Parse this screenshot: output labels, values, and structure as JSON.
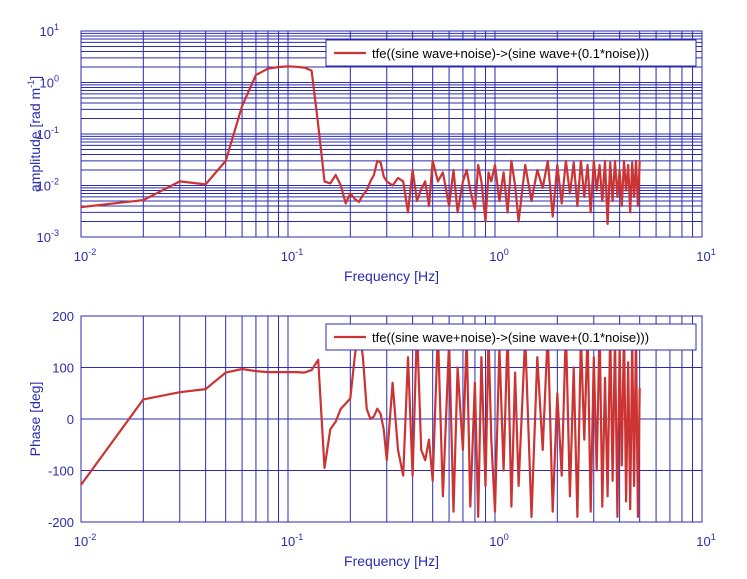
{
  "colors": {
    "axes": "#2b2bb0",
    "grid": "#2b2bb0",
    "series": "#cc3333",
    "background": "#ffffff"
  },
  "chart_data": [
    {
      "type": "line",
      "xscale": "log",
      "yscale": "log",
      "xlim": [
        0.01,
        10
      ],
      "ylim": [
        0.001,
        10
      ],
      "xlabel": "Frequency  [Hz]",
      "ylabel": "amplitude  [rad m",
      "ylabel_exp": "-1",
      "ylabel_close": "]",
      "grid": true,
      "legend_position": "top-right",
      "xticks": [
        {
          "base": "10",
          "exp": "-2"
        },
        {
          "base": "10",
          "exp": "-1"
        },
        {
          "base": "10",
          "exp": "0"
        },
        {
          "base": "10",
          "exp": "1"
        }
      ],
      "yticks": [
        {
          "base": "10",
          "exp": "-3"
        },
        {
          "base": "10",
          "exp": "-2"
        },
        {
          "base": "10",
          "exp": "-1"
        },
        {
          "base": "10",
          "exp": "0"
        },
        {
          "base": "10",
          "exp": "1"
        }
      ],
      "series": [
        {
          "name": "tfe((sine wave+noise)->(sine wave+(0.1*noise)))",
          "x": [
            0.01,
            0.02,
            0.03,
            0.04,
            0.05,
            0.06,
            0.07,
            0.08,
            0.09,
            0.1,
            0.11,
            0.12,
            0.13,
            0.14,
            0.15,
            0.16,
            0.17,
            0.18,
            0.19,
            0.2,
            0.21,
            0.22,
            0.23,
            0.24,
            0.25,
            0.26,
            0.27,
            0.28,
            0.29,
            0.3,
            0.32,
            0.34,
            0.36,
            0.38,
            0.4,
            0.42,
            0.44,
            0.46,
            0.48,
            0.5,
            0.53,
            0.56,
            0.6,
            0.63,
            0.66,
            0.7,
            0.73,
            0.76,
            0.8,
            0.83,
            0.86,
            0.9,
            0.93,
            0.96,
            1.0,
            1.05,
            1.1,
            1.15,
            1.2,
            1.25,
            1.3,
            1.4,
            1.5,
            1.6,
            1.7,
            1.8,
            1.9,
            2.0,
            2.1,
            2.2,
            2.3,
            2.4,
            2.5,
            2.6,
            2.7,
            2.8,
            2.9,
            3.0,
            3.1,
            3.2,
            3.3,
            3.4,
            3.5,
            3.6,
            3.7,
            3.8,
            3.9,
            4.0,
            4.1,
            4.2,
            4.3,
            4.4,
            4.5,
            4.6,
            4.7,
            4.8,
            4.9,
            5.0
          ],
          "y": [
            0.0038,
            0.0052,
            0.012,
            0.0105,
            0.03,
            0.35,
            1.4,
            1.85,
            2.0,
            2.05,
            2.02,
            1.95,
            1.7,
            0.15,
            0.012,
            0.011,
            0.016,
            0.01,
            0.0045,
            0.007,
            0.0055,
            0.0048,
            0.0065,
            0.008,
            0.012,
            0.016,
            0.03,
            0.028,
            0.015,
            0.012,
            0.01,
            0.014,
            0.012,
            0.003,
            0.02,
            0.005,
            0.0085,
            0.012,
            0.004,
            0.03,
            0.012,
            0.018,
            0.004,
            0.02,
            0.003,
            0.012,
            0.02,
            0.008,
            0.0035,
            0.025,
            0.012,
            0.002,
            0.018,
            0.012,
            0.025,
            0.005,
            0.018,
            0.003,
            0.03,
            0.01,
            0.002,
            0.025,
            0.005,
            0.02,
            0.009,
            0.03,
            0.0025,
            0.025,
            0.0045,
            0.03,
            0.007,
            0.028,
            0.004,
            0.03,
            0.006,
            0.025,
            0.003,
            0.03,
            0.008,
            0.025,
            0.005,
            0.03,
            0.0018,
            0.028,
            0.005,
            0.03,
            0.006,
            0.02,
            0.004,
            0.03,
            0.008,
            0.025,
            0.003,
            0.028,
            0.006,
            0.03,
            0.004,
            0.03
          ]
        }
      ]
    },
    {
      "type": "line",
      "xscale": "log",
      "yscale": "linear",
      "xlim": [
        0.01,
        10
      ],
      "ylim": [
        -200,
        200
      ],
      "xlabel": "Frequency  [Hz]",
      "ylabel": "Phase [deg]",
      "grid": true,
      "legend_position": "top-right",
      "xticks": [
        {
          "base": "10",
          "exp": "-2"
        },
        {
          "base": "10",
          "exp": "-1"
        },
        {
          "base": "10",
          "exp": "0"
        },
        {
          "base": "10",
          "exp": "1"
        }
      ],
      "yticks": [
        {
          "value": 200,
          "label": "200"
        },
        {
          "value": 100,
          "label": "100"
        },
        {
          "value": 0,
          "label": "0"
        },
        {
          "value": -100,
          "label": "-100"
        },
        {
          "value": -200,
          "label": "-200"
        }
      ],
      "series": [
        {
          "name": "tfe((sine wave+noise)->(sine wave+(0.1*noise)))",
          "x": [
            0.01,
            0.02,
            0.03,
            0.04,
            0.05,
            0.06,
            0.07,
            0.08,
            0.09,
            0.1,
            0.11,
            0.12,
            0.13,
            0.14,
            0.15,
            0.16,
            0.17,
            0.18,
            0.19,
            0.2,
            0.21,
            0.22,
            0.23,
            0.24,
            0.25,
            0.26,
            0.27,
            0.28,
            0.29,
            0.3,
            0.32,
            0.34,
            0.36,
            0.38,
            0.4,
            0.42,
            0.44,
            0.46,
            0.48,
            0.5,
            0.53,
            0.56,
            0.6,
            0.63,
            0.66,
            0.7,
            0.73,
            0.76,
            0.8,
            0.83,
            0.86,
            0.9,
            0.93,
            0.96,
            1.0,
            1.05,
            1.1,
            1.15,
            1.2,
            1.25,
            1.3,
            1.4,
            1.5,
            1.6,
            1.7,
            1.8,
            1.9,
            2.0,
            2.1,
            2.2,
            2.3,
            2.4,
            2.5,
            2.6,
            2.7,
            2.8,
            2.9,
            3.0,
            3.1,
            3.2,
            3.3,
            3.4,
            3.5,
            3.6,
            3.7,
            3.8,
            3.9,
            4.0,
            4.1,
            4.2,
            4.3,
            4.4,
            4.5,
            4.6,
            4.7,
            4.8,
            4.9,
            5.0
          ],
          "y": [
            -128,
            38,
            52,
            58,
            90,
            97,
            93,
            91,
            91,
            91,
            91,
            90,
            95,
            115,
            -95,
            -20,
            -5,
            20,
            30,
            40,
            120,
            180,
            120,
            20,
            0,
            5,
            20,
            10,
            -20,
            -80,
            70,
            -60,
            -110,
            120,
            -110,
            180,
            -60,
            -80,
            -40,
            -120,
            170,
            -150,
            150,
            -180,
            100,
            -60,
            160,
            -170,
            70,
            -190,
            120,
            -130,
            160,
            -40,
            -180,
            140,
            -100,
            170,
            -170,
            90,
            -130,
            160,
            -190,
            120,
            -60,
            170,
            -180,
            50,
            -110,
            175,
            -150,
            100,
            -190,
            160,
            -40,
            170,
            -180,
            120,
            -100,
            180,
            -170,
            80,
            -150,
            175,
            -120,
            160,
            -190,
            140,
            -90,
            180,
            -160,
            110,
            -175,
            150,
            -130,
            170,
            -190,
            60
          ]
        }
      ]
    }
  ]
}
